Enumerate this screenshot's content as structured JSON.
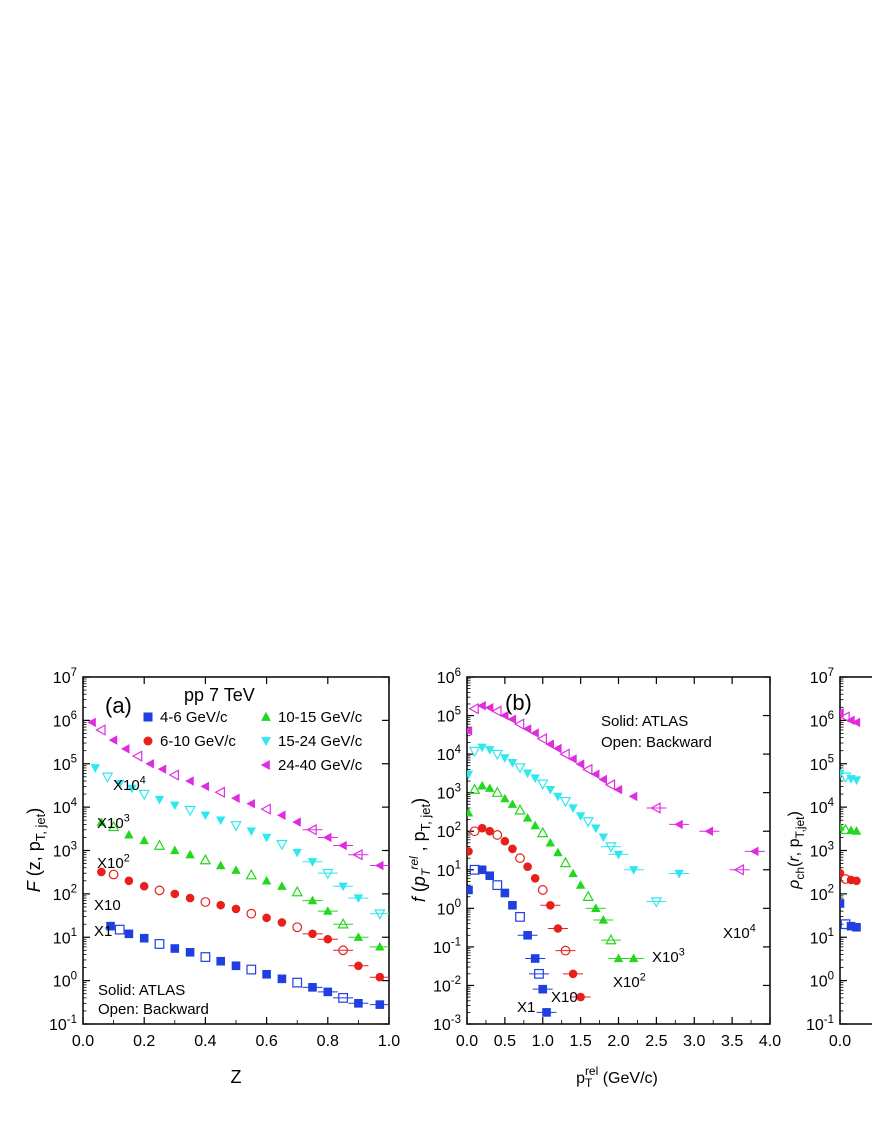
{
  "colors": {
    "blue": "#1f3fe0",
    "red": "#e8201c",
    "green": "#22d81c",
    "cyan": "#2ee8f0",
    "magenta": "#e02ce0",
    "axis": "#000000"
  },
  "chart_data": [
    {
      "type": "scatter",
      "panel_label": "(a)",
      "title": "pp   7 TeV",
      "ylabel": "F (z, p_T, jet)",
      "xlabel": "Z",
      "xlim": [
        0.0,
        1.0
      ],
      "ylim": [
        0.1,
        10000000
      ],
      "yscale": "log",
      "x_ticks": [
        "0.0",
        "0.2",
        "0.4",
        "0.6",
        "0.8",
        "1.0"
      ],
      "y_ticks": [
        "10^-1",
        "10^0",
        "10^1",
        "10^2",
        "10^3",
        "10^4",
        "10^5",
        "10^6",
        "10^7"
      ],
      "legend": [
        {
          "label": "4-6 GeV/c",
          "color": "blue",
          "marker": "square"
        },
        {
          "label": "10-15 GeV/c",
          "color": "green",
          "marker": "triangle-up"
        },
        {
          "label": "6-10 GeV/c",
          "color": "red",
          "marker": "circle"
        },
        {
          "label": "15-24 GeV/c",
          "color": "cyan",
          "marker": "triangle-down"
        },
        {
          "label": "24-40 GeV/c",
          "color": "magenta",
          "marker": "triangle-left"
        }
      ],
      "notes": [
        "Solid:  ATLAS",
        "Open: Backward"
      ],
      "scale_labels": [
        "X1",
        "X10",
        "X10^2",
        "X10^3",
        "X10^4"
      ],
      "series": [
        {
          "name": "4-6 GeV/c",
          "color": "blue",
          "marker": "square",
          "x": [
            0.09,
            0.12,
            0.15,
            0.2,
            0.25,
            0.3,
            0.35,
            0.4,
            0.45,
            0.5,
            0.55,
            0.6,
            0.65,
            0.7,
            0.75,
            0.8,
            0.85,
            0.9,
            0.97
          ],
          "y": [
            18,
            15,
            12,
            9.5,
            7,
            5.5,
            4.5,
            3.5,
            2.8,
            2.2,
            1.8,
            1.4,
            1.1,
            0.9,
            0.7,
            0.55,
            0.4,
            0.3,
            0.28
          ]
        },
        {
          "name": "6-10 GeV/c",
          "color": "red",
          "marker": "circle",
          "x": [
            0.06,
            0.1,
            0.15,
            0.2,
            0.25,
            0.3,
            0.35,
            0.4,
            0.45,
            0.5,
            0.55,
            0.6,
            0.65,
            0.7,
            0.75,
            0.8,
            0.85,
            0.9,
            0.97
          ],
          "y": [
            320,
            280,
            200,
            150,
            120,
            100,
            80,
            65,
            55,
            45,
            35,
            28,
            22,
            17,
            12,
            9,
            5,
            2.2,
            1.2
          ]
        },
        {
          "name": "10-15 GeV/c",
          "color": "green",
          "marker": "triangle-up",
          "x": [
            0.06,
            0.1,
            0.15,
            0.2,
            0.25,
            0.3,
            0.35,
            0.4,
            0.45,
            0.5,
            0.55,
            0.6,
            0.65,
            0.7,
            0.75,
            0.8,
            0.85,
            0.9,
            0.97
          ],
          "y": [
            4500,
            3500,
            2300,
            1700,
            1300,
            1000,
            800,
            600,
            450,
            350,
            270,
            200,
            150,
            110,
            70,
            40,
            20,
            10,
            6
          ]
        },
        {
          "name": "15-24 GeV/c",
          "color": "cyan",
          "marker": "triangle-down",
          "x": [
            0.04,
            0.08,
            0.12,
            0.16,
            0.2,
            0.25,
            0.3,
            0.35,
            0.4,
            0.45,
            0.5,
            0.55,
            0.6,
            0.65,
            0.7,
            0.75,
            0.8,
            0.85,
            0.9,
            0.97
          ],
          "y": [
            80000,
            50000,
            35000,
            27000,
            20000,
            15000,
            11000,
            8500,
            6500,
            5000,
            3800,
            2800,
            2000,
            1400,
            900,
            550,
            300,
            150,
            80,
            35
          ]
        },
        {
          "name": "24-40 GeV/c",
          "color": "magenta",
          "marker": "triangle-left",
          "x": [
            0.03,
            0.06,
            0.1,
            0.14,
            0.18,
            0.22,
            0.26,
            0.3,
            0.35,
            0.4,
            0.45,
            0.5,
            0.55,
            0.6,
            0.65,
            0.7,
            0.75,
            0.8,
            0.85,
            0.9,
            0.97
          ],
          "y": [
            900000,
            600000,
            350000,
            220000,
            150000,
            100000,
            75000,
            55000,
            40000,
            30000,
            22000,
            16000,
            12000,
            9000,
            6500,
            4500,
            3000,
            2000,
            1300,
            800,
            450
          ]
        }
      ]
    },
    {
      "type": "scatter",
      "panel_label": "(b)",
      "ylabel": "f (p_T^rel , p_T, jet)",
      "xlabel": "p_T^rel (GeV/c)",
      "xlim": [
        0.0,
        4.0
      ],
      "ylim": [
        0.001,
        1000000
      ],
      "yscale": "log",
      "x_ticks": [
        "0.0",
        "0.5",
        "1.0",
        "1.5",
        "2.0",
        "2.5",
        "3.0",
        "3.5",
        "4.0"
      ],
      "y_ticks": [
        "10^-3",
        "10^-2",
        "10^-1",
        "10^0",
        "10^1",
        "10^2",
        "10^3",
        "10^4",
        "10^5",
        "10^6"
      ],
      "notes": [
        "Solid:  ATLAS",
        "Open: Backward"
      ],
      "scale_labels": [
        "X1",
        "X10",
        "X10^2",
        "X10^3",
        "X10^4"
      ],
      "series": [
        {
          "name": "4-6 GeV/c",
          "color": "blue",
          "marker": "square",
          "x": [
            0.02,
            0.1,
            0.2,
            0.3,
            0.4,
            0.5,
            0.6,
            0.7,
            0.8,
            0.9,
            0.95,
            1.0,
            1.05
          ],
          "y": [
            3,
            10,
            10,
            7,
            4,
            2.5,
            1.2,
            0.6,
            0.2,
            0.05,
            0.02,
            0.008,
            0.002
          ]
        },
        {
          "name": "6-10 GeV/c",
          "color": "red",
          "marker": "circle",
          "x": [
            0.02,
            0.1,
            0.2,
            0.3,
            0.4,
            0.5,
            0.6,
            0.7,
            0.8,
            0.9,
            1.0,
            1.1,
            1.2,
            1.3,
            1.4,
            1.5
          ],
          "y": [
            30,
            100,
            120,
            100,
            80,
            55,
            35,
            20,
            12,
            6,
            3,
            1.2,
            0.3,
            0.08,
            0.02,
            0.005
          ]
        },
        {
          "name": "10-15 GeV/c",
          "color": "green",
          "marker": "triangle-up",
          "x": [
            0.02,
            0.1,
            0.2,
            0.3,
            0.4,
            0.5,
            0.6,
            0.7,
            0.8,
            0.9,
            1.0,
            1.1,
            1.2,
            1.3,
            1.4,
            1.5,
            1.6,
            1.7,
            1.8,
            1.9,
            2.0,
            2.2
          ],
          "y": [
            300,
            1200,
            1500,
            1300,
            1000,
            700,
            500,
            350,
            220,
            140,
            90,
            50,
            28,
            15,
            8,
            4,
            2,
            1,
            0.5,
            0.15,
            0.05,
            0.05
          ]
        },
        {
          "name": "15-24 GeV/c",
          "color": "cyan",
          "marker": "triangle-down",
          "x": [
            0.02,
            0.1,
            0.2,
            0.3,
            0.4,
            0.5,
            0.6,
            0.7,
            0.8,
            0.9,
            1.0,
            1.1,
            1.2,
            1.3,
            1.4,
            1.5,
            1.6,
            1.7,
            1.8,
            1.9,
            2.0,
            2.2,
            2.5,
            2.8
          ],
          "y": [
            3000,
            12000,
            15000,
            13000,
            10000,
            8000,
            6000,
            4500,
            3200,
            2400,
            1700,
            1200,
            800,
            600,
            400,
            250,
            180,
            120,
            70,
            40,
            25,
            10,
            1.5,
            8
          ]
        },
        {
          "name": "24-40 GeV/c",
          "color": "magenta",
          "marker": "triangle-left",
          "x": [
            0.02,
            0.1,
            0.2,
            0.3,
            0.4,
            0.5,
            0.6,
            0.7,
            0.8,
            0.9,
            1.0,
            1.1,
            1.2,
            1.3,
            1.4,
            1.5,
            1.6,
            1.7,
            1.8,
            1.9,
            2.0,
            2.2,
            2.5,
            2.8,
            3.2,
            3.6,
            3.8
          ],
          "y": [
            40000,
            150000,
            180000,
            160000,
            130000,
            100000,
            80000,
            60000,
            45000,
            35000,
            25000,
            18000,
            14000,
            10000,
            7500,
            5500,
            4000,
            3000,
            2200,
            1600,
            1200,
            800,
            400,
            150,
            100,
            10,
            30
          ]
        }
      ]
    },
    {
      "type": "scatter",
      "ylabel": "ρ_ch(r, p_T,jet)",
      "xlim": [
        0.0,
        0.4
      ],
      "ylim": [
        0.1,
        10000000
      ],
      "yscale": "log",
      "x_ticks": [
        "0.0"
      ],
      "y_ticks": [
        "10^-1",
        "10^0",
        "10^1",
        "10^2",
        "10^3",
        "10^4",
        "10^5",
        "10^6",
        "10^7"
      ],
      "series": [
        {
          "name": "4-6 GeV/c",
          "color": "blue",
          "marker": "square",
          "x": [
            0.0,
            0.01,
            0.02,
            0.03
          ],
          "y": [
            60,
            20,
            18,
            17
          ]
        },
        {
          "name": "6-10 GeV/c",
          "color": "red",
          "marker": "circle",
          "x": [
            0.0,
            0.01,
            0.02,
            0.03
          ],
          "y": [
            300,
            220,
            210,
            200
          ]
        },
        {
          "name": "10-15 GeV/c",
          "color": "green",
          "marker": "triangle-up",
          "x": [
            0.0,
            0.01,
            0.02,
            0.03
          ],
          "y": [
            3500,
            3000,
            2900,
            2800
          ]
        },
        {
          "name": "15-24 GeV/c",
          "color": "cyan",
          "marker": "triangle-down",
          "x": [
            0.0,
            0.01,
            0.02,
            0.03
          ],
          "y": [
            60000,
            50000,
            45000,
            42000
          ]
        },
        {
          "name": "24-40 GeV/c",
          "color": "magenta",
          "marker": "triangle-left",
          "x": [
            0.0,
            0.01,
            0.02,
            0.03
          ],
          "y": [
            1500000,
            1200000,
            1000000,
            900000
          ]
        }
      ]
    }
  ]
}
